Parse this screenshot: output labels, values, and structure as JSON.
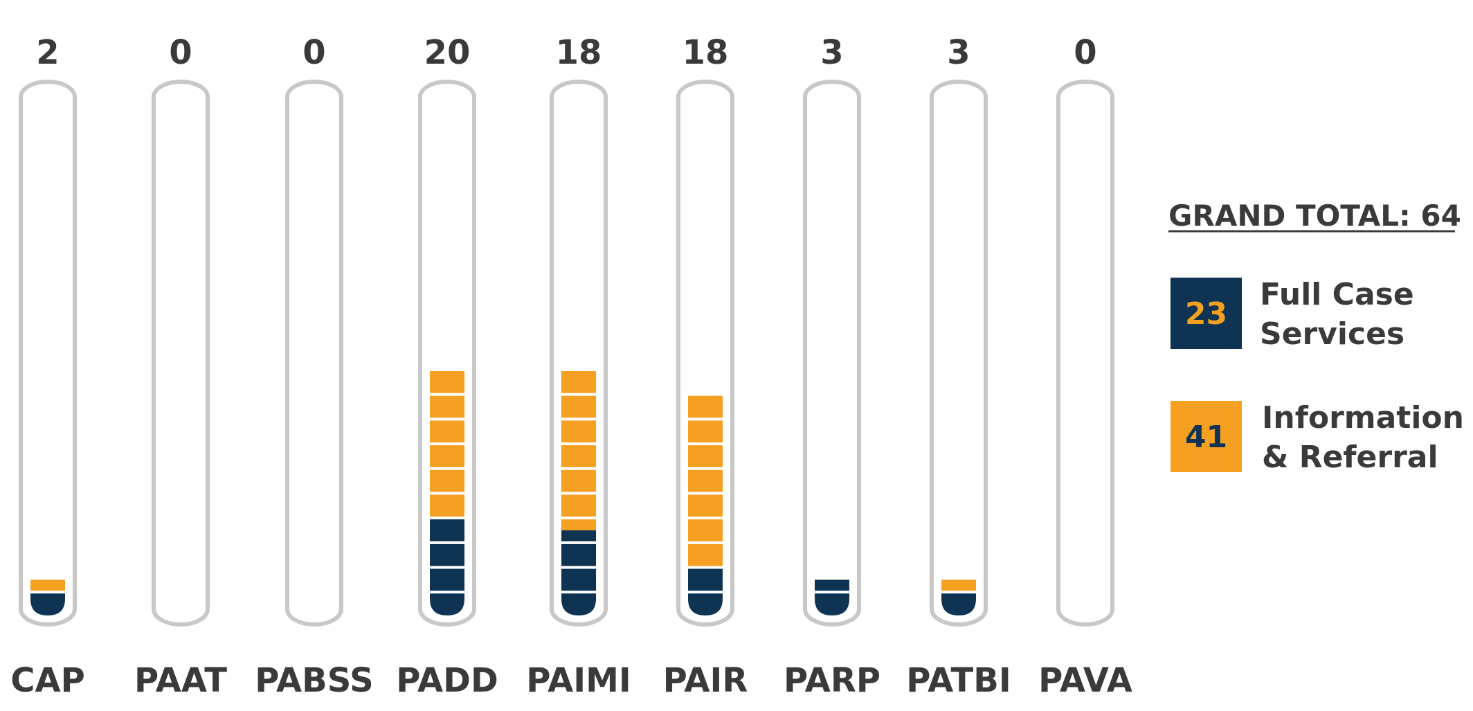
{
  "chart_data": {
    "type": "bar",
    "categories": [
      "CAP",
      "PAAT",
      "PABSS",
      "PADD",
      "PAIMI",
      "PAIR",
      "PARP",
      "PATBI",
      "PAVA"
    ],
    "totals": [
      2,
      0,
      0,
      20,
      18,
      18,
      3,
      3,
      0
    ],
    "series": [
      {
        "name": "Full Case Services",
        "values": [
          1,
          0,
          0,
          4,
          3.5,
          2,
          1.5,
          1,
          0
        ],
        "color": "#0f3352"
      },
      {
        "name": "Information & Referral",
        "values": [
          0.5,
          0,
          0,
          6,
          6.5,
          7,
          0,
          0.5,
          0
        ],
        "color": "#f5a020"
      }
    ],
    "grand_total_label": "GRAND TOTAL: 64",
    "legend": [
      {
        "count": "23",
        "label_line1": "Full Case",
        "label_line2": "Services",
        "box_color": "#0f3352",
        "text_color": "#f5a020"
      },
      {
        "count": "41",
        "label_line1": "Information",
        "label_line2": "& Referral",
        "box_color": "#f5a020",
        "text_color": "#0f3352"
      }
    ],
    "tube_color": "#c8c8c8",
    "unit_block_count_max": 20
  }
}
